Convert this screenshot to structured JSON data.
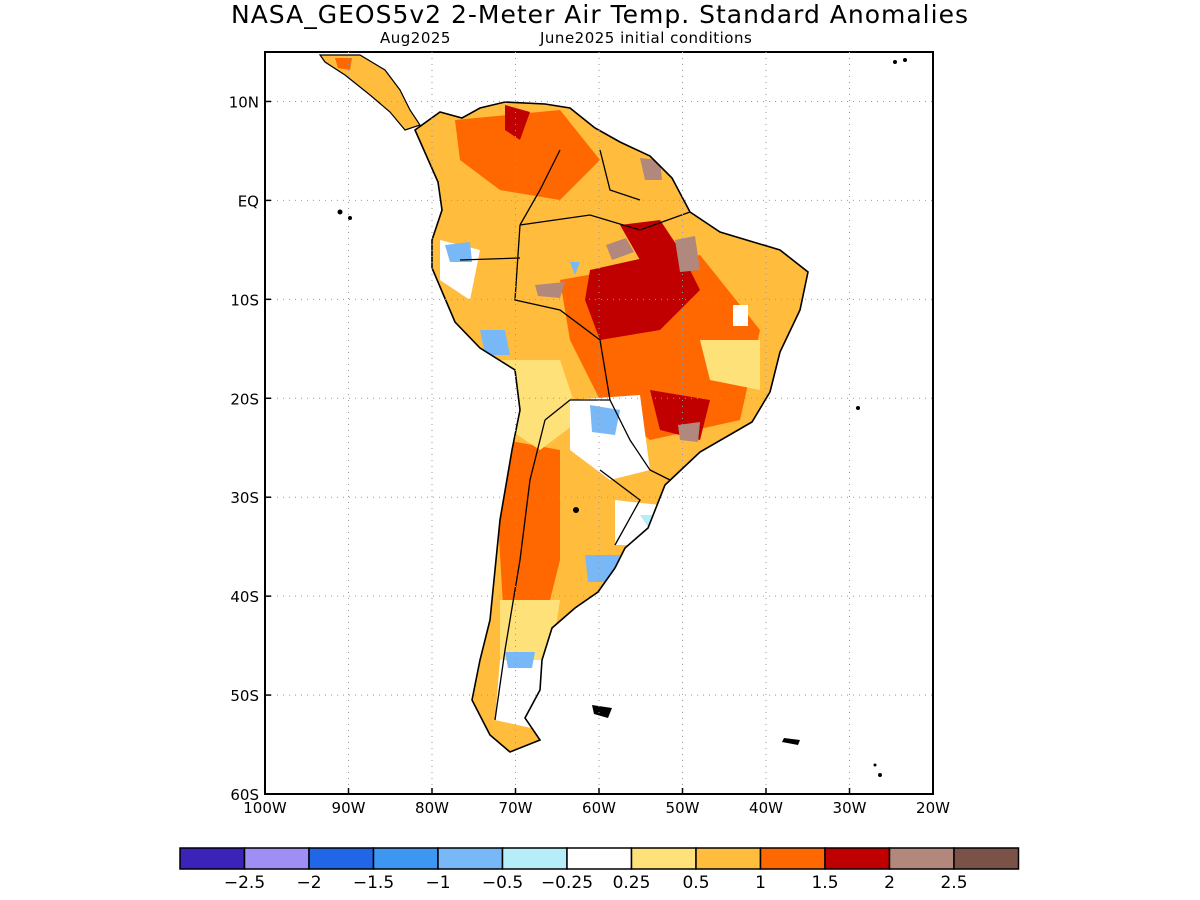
{
  "header": {
    "title": "NASA_GEOS5v2 2-Meter Air Temp. Standard Anomalies",
    "valid_month": "Aug2025",
    "init": "June2025 initial conditions"
  },
  "map": {
    "lon_labels": [
      "100W",
      "90W",
      "80W",
      "70W",
      "60W",
      "50W",
      "40W",
      "30W",
      "20W"
    ],
    "lat_labels": [
      "10N",
      "EQ",
      "10S",
      "20S",
      "30S",
      "40S",
      "50S",
      "60S"
    ],
    "lon_range": [
      -100,
      -20
    ],
    "lat_range": [
      -60,
      15
    ],
    "grid": "dotted"
  },
  "colorbar": {
    "colors": [
      "#3b22b8",
      "#9f8ff5",
      "#2266e8",
      "#3d97f2",
      "#78b8f6",
      "#b5eef8",
      "#ffffff",
      "#ffe17a",
      "#ffbc3d",
      "#ff6700",
      "#c00000",
      "#b2887d",
      "#7a5248"
    ],
    "labels": [
      "-2.5",
      "-2",
      "-1.5",
      "-1",
      "-0.5",
      "-0.25",
      "0.25",
      "0.5",
      "1",
      "1.5",
      "2",
      "2.5"
    ]
  },
  "colors": {
    "land_base": "#ffbc3d",
    "coast": "#000000"
  }
}
